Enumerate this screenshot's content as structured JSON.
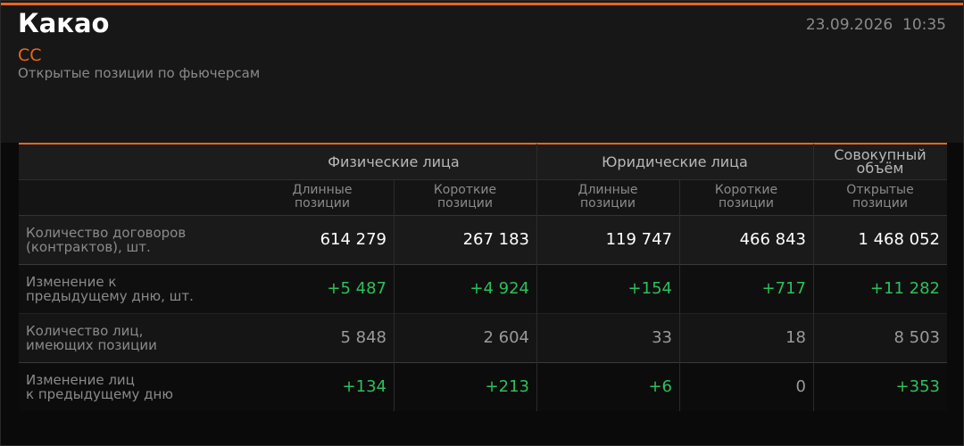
{
  "header": {
    "title": "Какао",
    "ticker": "CC",
    "subtitle": "Открытые позиции по фьючерсам",
    "datetime": "23.09.2026  10:35"
  },
  "table": {
    "groups": [
      "Физические лица",
      "Юридические лица",
      "Совокупный\nобъём"
    ],
    "columns": [
      "Длинные\nпозиции",
      "Короткие\nпозиции",
      "Длинные\nпозиции",
      "Короткие\nпозиции",
      "Открытые\nпозиции"
    ],
    "rows": [
      {
        "label": "Количество договоров\n(контрактов), шт.",
        "values": [
          "614 279",
          "267 183",
          "119 747",
          "466 843",
          "1 468 052"
        ]
      },
      {
        "label": "Изменение к\nпредыдущему дню, шт.",
        "values": [
          "+5 487",
          "+4 924",
          "+154",
          "+717",
          "+11 282"
        ]
      },
      {
        "label": "Количество лиц,\nимеющих позиции",
        "values": [
          "5 848",
          "2 604",
          "33",
          "18",
          "8 503"
        ]
      },
      {
        "label": "Изменение лиц\nк предыдущему дню",
        "values": [
          "+134",
          "+213",
          "+6",
          "0",
          "+353"
        ]
      }
    ]
  }
}
